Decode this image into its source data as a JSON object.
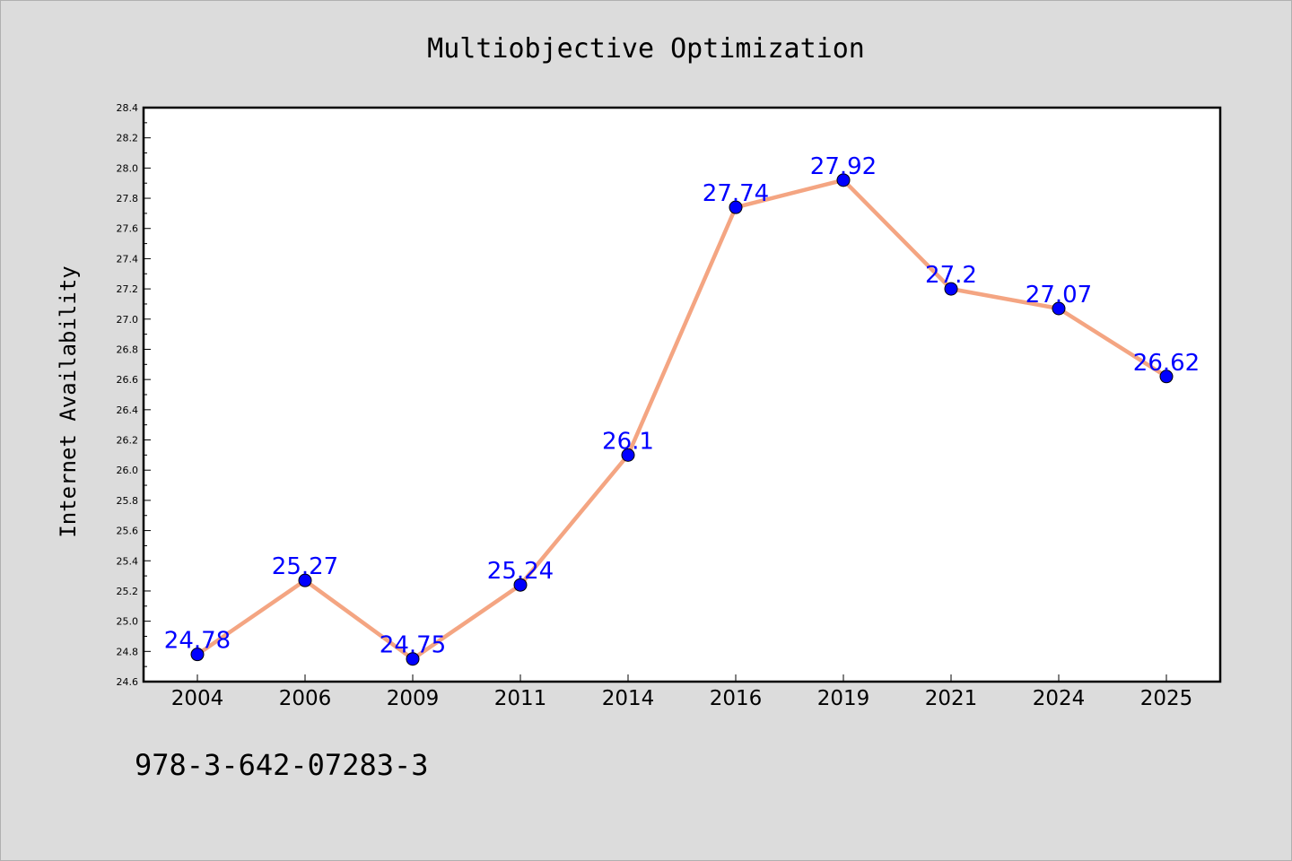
{
  "chart_data": {
    "type": "line",
    "title": "Multiobjective Optimization",
    "xlabel": "",
    "ylabel": "Internet Availability",
    "categories": [
      "2004",
      "2006",
      "2009",
      "2011",
      "2014",
      "2016",
      "2019",
      "2021",
      "2024",
      "2025"
    ],
    "series": [
      {
        "values": [
          24.78,
          25.27,
          24.75,
          25.24,
          26.1,
          27.74,
          27.92,
          27.2,
          27.07,
          26.62
        ],
        "line_color": "#f4a582",
        "marker_color": "#0000ff"
      }
    ],
    "data_labels": [
      "24.78",
      "25.27",
      "24.75",
      "25.24",
      "26.1",
      "27.74",
      "27.92",
      "27.2",
      "27.07",
      "26.62"
    ],
    "ylim": [
      24.6,
      28.4
    ],
    "yticks": [
      "24.6",
      "24.8",
      "25.0",
      "25.2",
      "25.4",
      "25.6",
      "25.8",
      "26.0",
      "26.2",
      "26.4",
      "26.6",
      "26.8",
      "27.0",
      "27.2",
      "27.4",
      "27.6",
      "27.8",
      "28.0",
      "28.2",
      "28.4"
    ],
    "grid": false,
    "legend": "none"
  },
  "footer": {
    "text": "978-3-642-07283-3"
  }
}
